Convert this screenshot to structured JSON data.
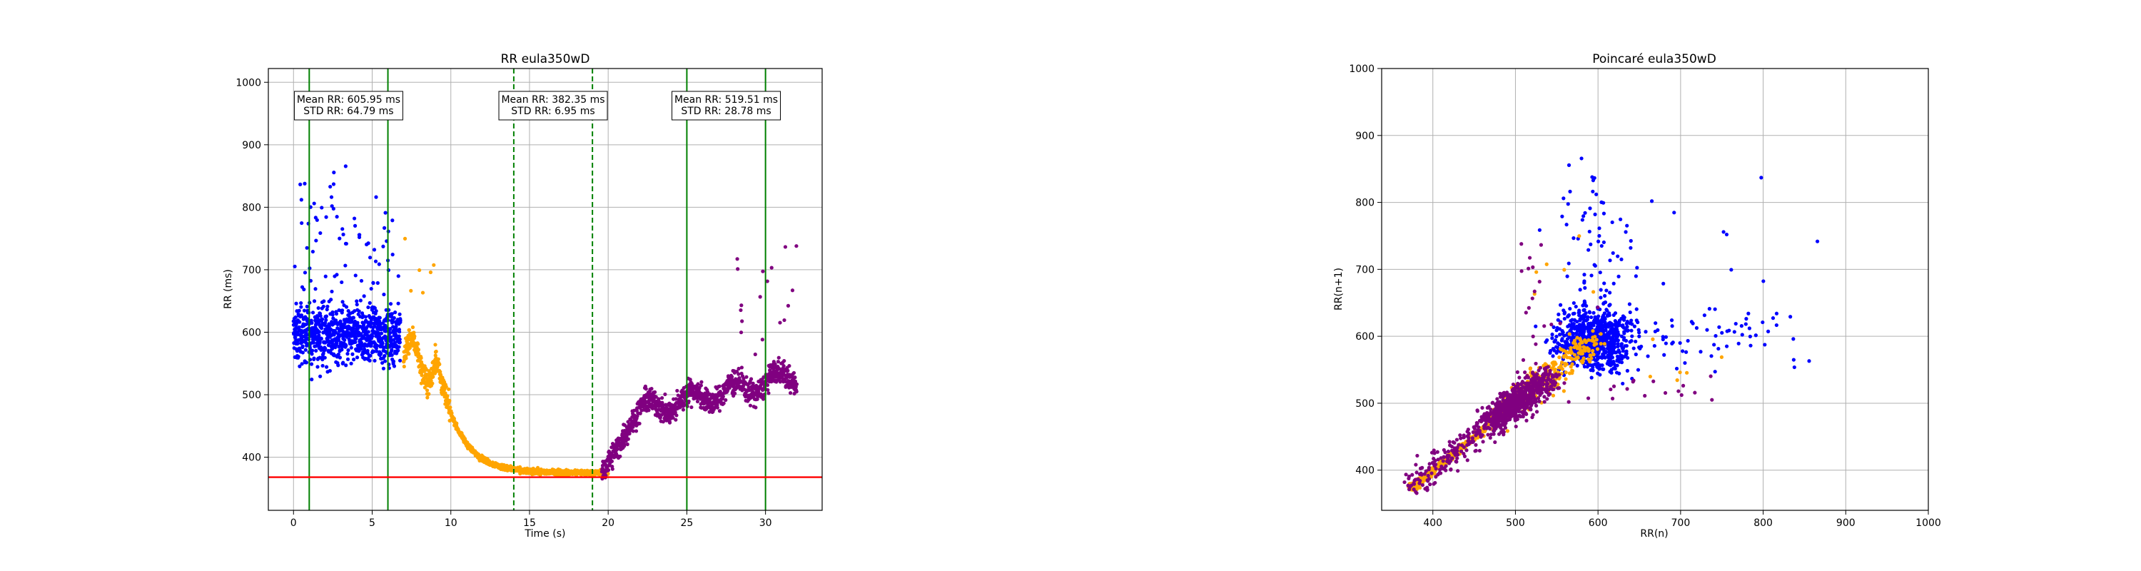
{
  "colors": {
    "phase_1": "#0000ff",
    "phase_2": "#ffa500",
    "phase_3": "#800080",
    "marker_line": "#008000",
    "baseline": "#ff0000"
  },
  "chart_data": [
    {
      "type": "scatter",
      "title": "RR eula350wD",
      "xlabel": "Time (s)",
      "ylabel": "RR (ms)",
      "xlim": [
        -1.6,
        33.6
      ],
      "ylim": [
        315,
        1022
      ],
      "xticks": [
        0,
        5,
        10,
        15,
        20,
        25,
        30
      ],
      "yticks": [
        400,
        500,
        600,
        700,
        800,
        900,
        1000
      ],
      "grid": true,
      "series": [
        {
          "color": "#0000ff",
          "segment": "phase_1",
          "x_range": [
            0,
            6.8
          ],
          "approx_mean": 600,
          "approx_spread": 65
        },
        {
          "color": "#ffa500",
          "segment": "phase_2",
          "x_range": [
            7,
            20
          ],
          "trend": "decay from ~570 to ~375"
        },
        {
          "color": "#800080",
          "segment": "phase_3",
          "x_range": [
            19.5,
            32
          ],
          "trend": "rise from ~375 to ~530"
        }
      ],
      "vertical_lines": [
        {
          "x": 1,
          "style": "solid",
          "color": "#008000"
        },
        {
          "x": 6,
          "style": "solid",
          "color": "#008000"
        },
        {
          "x": 14,
          "style": "dashed",
          "color": "#008000"
        },
        {
          "x": 19,
          "style": "dashed",
          "color": "#008000"
        },
        {
          "x": 25,
          "style": "solid",
          "color": "#008000"
        },
        {
          "x": 30,
          "style": "solid",
          "color": "#008000"
        }
      ],
      "horizontal_lines": [
        {
          "y": 368,
          "style": "solid",
          "color": "#ff0000"
        }
      ],
      "annotations": [
        {
          "x_center": 3.5,
          "lines": [
            "Mean RR: 605.95 ms",
            "STD RR: 64.79 ms"
          ]
        },
        {
          "x_center": 16.5,
          "lines": [
            "Mean RR: 382.35 ms",
            "STD RR: 6.95 ms"
          ]
        },
        {
          "x_center": 27.5,
          "lines": [
            "Mean RR: 519.51 ms",
            "STD RR: 28.78 ms"
          ]
        }
      ]
    },
    {
      "type": "scatter",
      "title": "Poincaré eula350wD",
      "xlabel": "RR(n)",
      "ylabel": "RR(n+1)",
      "xlim": [
        338,
        1000
      ],
      "ylim": [
        340,
        1000
      ],
      "xticks": [
        400,
        500,
        600,
        700,
        800,
        900,
        1000
      ],
      "yticks": [
        400,
        500,
        600,
        700,
        800,
        900,
        1000
      ],
      "grid": true,
      "series": [
        {
          "color": "#0000ff",
          "segment": "phase_1"
        },
        {
          "color": "#ffa500",
          "segment": "phase_2"
        },
        {
          "color": "#800080",
          "segment": "phase_3"
        }
      ]
    }
  ]
}
